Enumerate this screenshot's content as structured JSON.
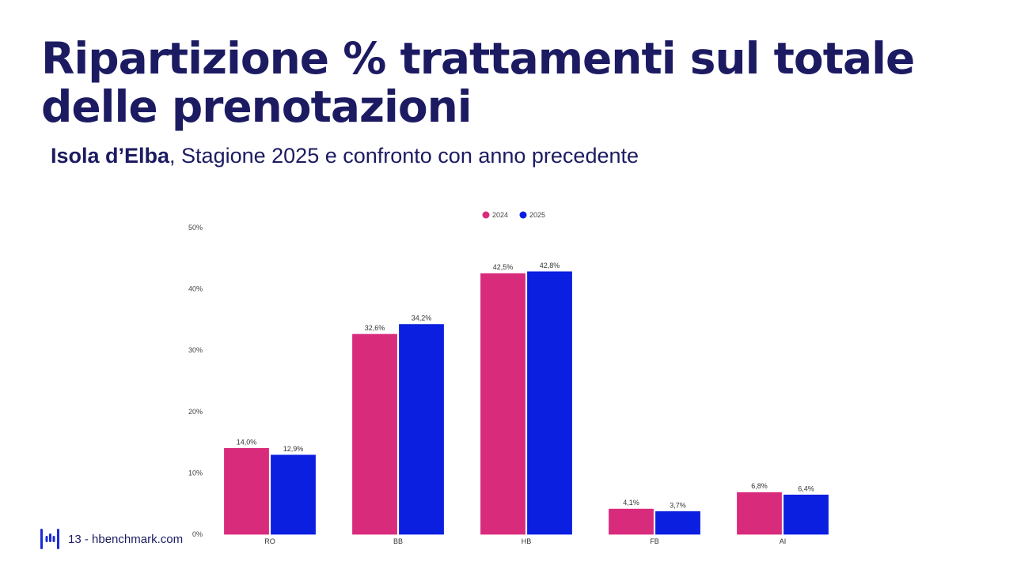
{
  "header": {
    "title": "Ripartizione % trattamenti sul totale delle prenotazioni",
    "subtitle_bold": "Isola d’Elba",
    "subtitle_rest": ", Stagione 2025 e confronto con anno precedente"
  },
  "footer": {
    "page_number": "13",
    "separator": " - ",
    "site": "hbenchmark.com",
    "logo_icon": "hbenchmark-logo-icon"
  },
  "colors": {
    "title": "#1c1b62",
    "series_2024": "#d92b7c",
    "series_2025": "#0a1fe0"
  },
  "chart_data": {
    "type": "bar",
    "title": "",
    "xlabel": "",
    "ylabel": "",
    "categories": [
      "RO",
      "BB",
      "HB",
      "FB",
      "AI"
    ],
    "series": [
      {
        "name": "2024",
        "values": [
          14.0,
          32.6,
          42.5,
          4.1,
          6.8
        ],
        "labels": [
          "14,0%",
          "32,6%",
          "42,5%",
          "4,1%",
          "6,8%"
        ],
        "color": "#d92b7c"
      },
      {
        "name": "2025",
        "values": [
          12.9,
          34.2,
          42.8,
          3.7,
          6.4
        ],
        "labels": [
          "12,9%",
          "34,2%",
          "42,8%",
          "3,7%",
          "6,4%"
        ],
        "color": "#0a1fe0"
      }
    ],
    "ylim": [
      0,
      50
    ],
    "yticks": [
      0,
      10,
      20,
      30,
      40,
      50
    ],
    "ytick_labels": [
      "0%",
      "10%",
      "20%",
      "30%",
      "40%",
      "50%"
    ],
    "grid": false,
    "legend_position": "top-center"
  }
}
